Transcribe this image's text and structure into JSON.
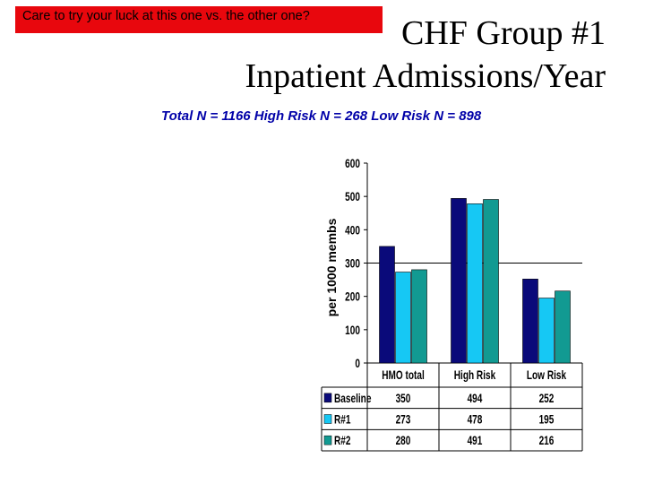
{
  "banner": "Care to try your luck at this one vs. the other one?",
  "title_line1": "CHF Group #1",
  "title_line2": "Inpatient Admissions/Year",
  "subtitle": "Total N = 1166   High Risk N = 268 Low Risk N = 898",
  "chart_data": {
    "type": "bar",
    "title": "",
    "ylabel": "per 1000 membs",
    "xlabel": "",
    "ylim": [
      0,
      600
    ],
    "yticks": [
      0,
      100,
      200,
      300,
      400,
      500,
      600
    ],
    "categories": [
      "HMO total",
      "High Risk",
      "Low Risk"
    ],
    "series": [
      {
        "name": "Baseline",
        "values": [
          350,
          494,
          252
        ],
        "color": "#0a0a7a"
      },
      {
        "name": "R#1",
        "values": [
          273,
          478,
          195
        ],
        "color": "#16c8f4"
      },
      {
        "name": "R#2",
        "values": [
          280,
          491,
          216
        ],
        "color": "#129a92"
      }
    ],
    "data_table": true,
    "legend": "in data table",
    "grid": false
  }
}
